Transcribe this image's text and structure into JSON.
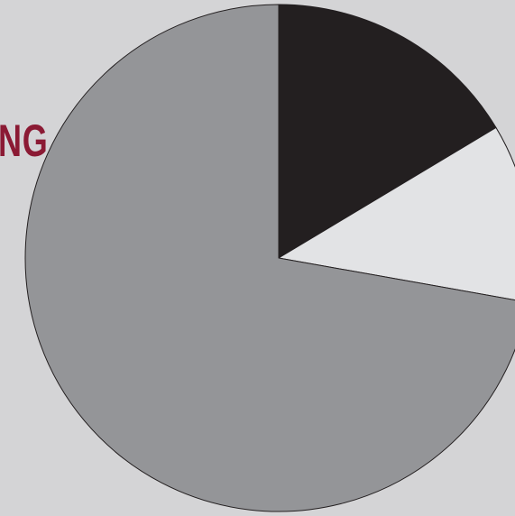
{
  "fragment_text": "NG",
  "chart_data": {
    "type": "pie",
    "title": "",
    "slices": [
      {
        "value": 16.4,
        "color": "#231f20"
      },
      {
        "value": 11.4,
        "color": "#e2e3e5"
      },
      {
        "value": 72.2,
        "color": "#949598"
      }
    ],
    "start_angle_deg": 0,
    "direction": "clockwise",
    "stroke_color": "#231f20",
    "legend": "none"
  }
}
